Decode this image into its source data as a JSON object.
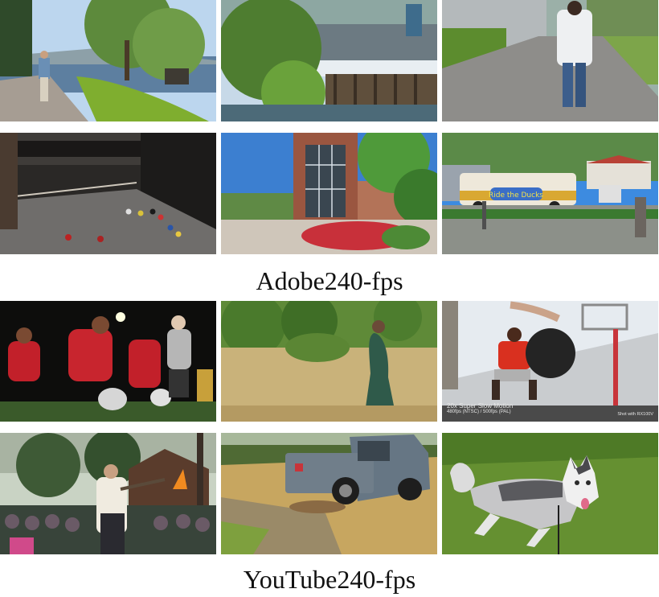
{
  "captions": {
    "adobe": "Adobe240-fps",
    "youtube": "YouTube240-fps"
  },
  "overlays": {
    "slowmo_title": "20x Super Slow Motion",
    "slowmo_fps": "480fps (NTSC) / 500fps (PAL)",
    "shot_with": "Shot with RX100V"
  },
  "sign_text": "Ride the Ducks"
}
